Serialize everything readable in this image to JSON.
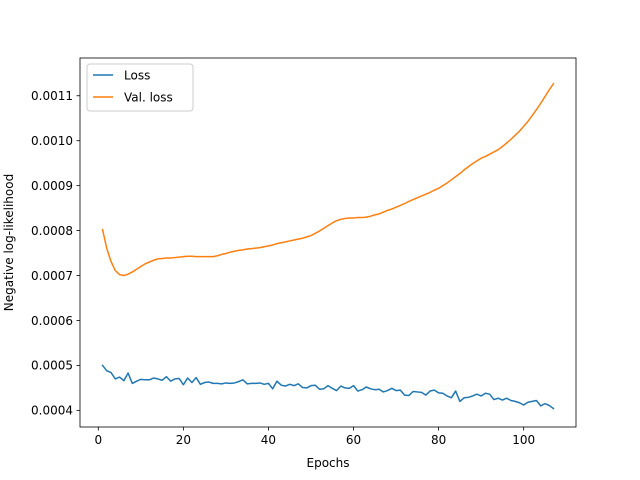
{
  "chart_data": {
    "type": "line",
    "title": "",
    "xlabel": "Epochs",
    "ylabel": "Negative log-likelihood",
    "xlim": [
      -4.3,
      112.3
    ],
    "ylim": [
      0.000363,
      0.001184
    ],
    "xticks": [
      {
        "value": 0,
        "label": "0"
      },
      {
        "value": 20,
        "label": "20"
      },
      {
        "value": 40,
        "label": "40"
      },
      {
        "value": 60,
        "label": "60"
      },
      {
        "value": 80,
        "label": "80"
      },
      {
        "value": 100,
        "label": "100"
      }
    ],
    "yticks": [
      {
        "value": 0.0004,
        "label": "0.0004"
      },
      {
        "value": 0.0005,
        "label": "0.0005"
      },
      {
        "value": 0.0006,
        "label": "0.0006"
      },
      {
        "value": 0.0007,
        "label": "0.0007"
      },
      {
        "value": 0.0008,
        "label": "0.0008"
      },
      {
        "value": 0.0009,
        "label": "0.0009"
      },
      {
        "value": 0.001,
        "label": "0.0010"
      },
      {
        "value": 0.0011,
        "label": "0.0011"
      }
    ],
    "grid": false,
    "legend": {
      "position": "top-left"
    },
    "series": [
      {
        "name": "Loss",
        "color": "#1f77b4",
        "x": [
          1,
          2,
          3,
          4,
          5,
          6,
          7,
          8,
          9,
          10,
          11,
          12,
          13,
          14,
          15,
          16,
          17,
          18,
          19,
          20,
          21,
          22,
          23,
          24,
          25,
          26,
          27,
          28,
          29,
          30,
          31,
          32,
          33,
          34,
          35,
          36,
          37,
          38,
          39,
          40,
          41,
          42,
          43,
          44,
          45,
          46,
          47,
          48,
          49,
          50,
          51,
          52,
          53,
          54,
          55,
          56,
          57,
          58,
          59,
          60,
          61,
          62,
          63,
          64,
          65,
          66,
          67,
          68,
          69,
          70,
          71,
          72,
          73,
          74,
          75,
          76,
          77,
          78,
          79,
          80,
          81,
          82,
          83,
          84,
          85,
          86,
          87,
          88,
          89,
          90,
          91,
          92,
          93,
          94,
          95,
          96,
          97,
          98,
          99,
          100,
          101,
          102,
          103,
          104,
          105,
          106,
          107
        ],
        "y": [
          0.0005,
          0.000488,
          0.000484,
          0.00047,
          0.000474,
          0.000466,
          0.000483,
          0.00046,
          0.000465,
          0.000469,
          0.000468,
          0.000468,
          0.000472,
          0.00047,
          0.000467,
          0.000475,
          0.000465,
          0.00047,
          0.000471,
          0.000457,
          0.000472,
          0.000462,
          0.000473,
          0.000458,
          0.000462,
          0.000463,
          0.00046,
          0.00046,
          0.000459,
          0.000461,
          0.00046,
          0.000461,
          0.000464,
          0.000468,
          0.000459,
          0.00046,
          0.00046,
          0.000461,
          0.000458,
          0.00046,
          0.000448,
          0.000465,
          0.000456,
          0.000454,
          0.000458,
          0.000455,
          0.000459,
          0.000451,
          0.00045,
          0.000455,
          0.000456,
          0.000447,
          0.000448,
          0.000455,
          0.000449,
          0.000444,
          0.000454,
          0.00045,
          0.000449,
          0.000455,
          0.000443,
          0.000446,
          0.000452,
          0.000448,
          0.000446,
          0.000447,
          0.000441,
          0.000444,
          0.000449,
          0.000444,
          0.000445,
          0.000434,
          0.000433,
          0.000442,
          0.000441,
          0.00044,
          0.000434,
          0.000443,
          0.000445,
          0.000439,
          0.000438,
          0.000432,
          0.000428,
          0.000443,
          0.00042,
          0.000428,
          0.000429,
          0.000432,
          0.000436,
          0.000432,
          0.000438,
          0.000436,
          0.000424,
          0.000427,
          0.000423,
          0.000427,
          0.000422,
          0.00042,
          0.000417,
          0.000412,
          0.000418,
          0.00042,
          0.000422,
          0.00041,
          0.000415,
          0.000411,
          0.000404
        ]
      },
      {
        "name": "Val. loss",
        "color": "#ff7f0e",
        "x": [
          1,
          2,
          3,
          4,
          5,
          6,
          7,
          8,
          9,
          10,
          11,
          12,
          13,
          14,
          15,
          16,
          17,
          18,
          19,
          20,
          21,
          22,
          23,
          24,
          25,
          26,
          27,
          28,
          29,
          30,
          31,
          32,
          33,
          34,
          35,
          36,
          37,
          38,
          39,
          40,
          41,
          42,
          43,
          44,
          45,
          46,
          47,
          48,
          49,
          50,
          51,
          52,
          53,
          54,
          55,
          56,
          57,
          58,
          59,
          60,
          61,
          62,
          63,
          64,
          65,
          66,
          67,
          68,
          69,
          70,
          71,
          72,
          73,
          74,
          75,
          76,
          77,
          78,
          79,
          80,
          81,
          82,
          83,
          84,
          85,
          86,
          87,
          88,
          89,
          90,
          91,
          92,
          93,
          94,
          95,
          96,
          97,
          98,
          99,
          100,
          101,
          102,
          103,
          104,
          105,
          106,
          107
        ],
        "y": [
          0.000802,
          0.00076,
          0.000731,
          0.000711,
          0.000702,
          0.0007,
          0.000703,
          0.000708,
          0.000714,
          0.00072,
          0.000726,
          0.00073,
          0.000734,
          0.000737,
          0.000738,
          0.000739,
          0.000739,
          0.00074,
          0.000741,
          0.000742,
          0.000743,
          0.000743,
          0.000742,
          0.000742,
          0.000742,
          0.000742,
          0.000742,
          0.000744,
          0.000747,
          0.000749,
          0.000752,
          0.000754,
          0.000756,
          0.000757,
          0.000759,
          0.00076,
          0.000761,
          0.000762,
          0.000764,
          0.000766,
          0.000768,
          0.000771,
          0.000773,
          0.000775,
          0.000777,
          0.000779,
          0.000781,
          0.000783,
          0.000786,
          0.000789,
          0.000794,
          0.000799,
          0.000805,
          0.000811,
          0.000817,
          0.000822,
          0.000825,
          0.000827,
          0.000828,
          0.000828,
          0.000829,
          0.000829,
          0.00083,
          0.000832,
          0.000835,
          0.000837,
          0.000841,
          0.000845,
          0.000848,
          0.000852,
          0.000856,
          0.00086,
          0.000865,
          0.000869,
          0.000873,
          0.000877,
          0.000881,
          0.000885,
          0.00089,
          0.000894,
          0.0009,
          0.000906,
          0.000913,
          0.00092,
          0.000927,
          0.000935,
          0.000942,
          0.000949,
          0.000955,
          0.000961,
          0.000965,
          0.00097,
          0.000975,
          0.00098,
          0.000987,
          0.000995,
          0.001003,
          0.001012,
          0.001021,
          0.001032,
          0.001043,
          0.001056,
          0.001069,
          0.001083,
          0.001098,
          0.001113,
          0.001127
        ]
      }
    ]
  }
}
